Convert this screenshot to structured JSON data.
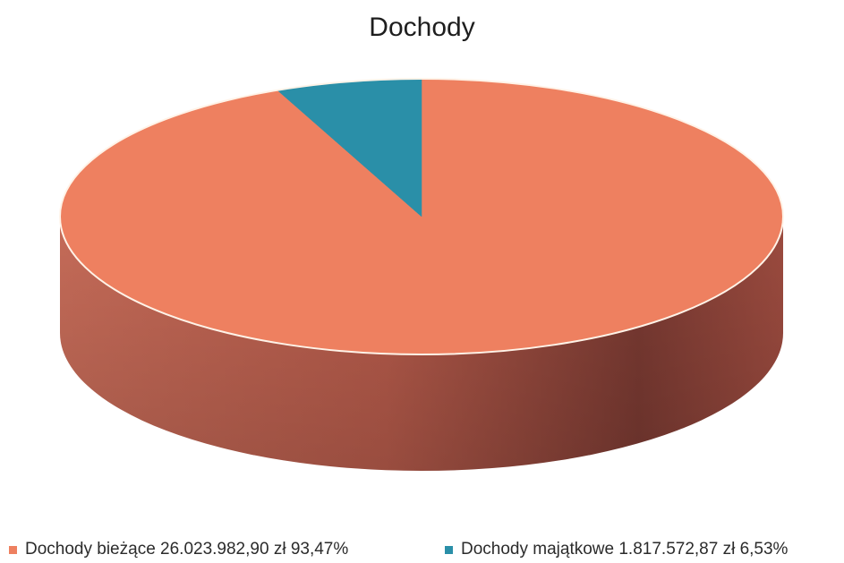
{
  "chart_data": {
    "type": "pie",
    "title": "Dochody",
    "slices": [
      {
        "label": "Dochody bieżące 26.023.982,90 zł  93,47%",
        "value": 93.47,
        "color": "#ee8060"
      },
      {
        "label": "Dochody majątkowe 1.817.572,87 zł  6,53%",
        "value": 6.53,
        "color": "#2a8fa8"
      }
    ],
    "three_d": true,
    "legend_position": "bottom"
  }
}
